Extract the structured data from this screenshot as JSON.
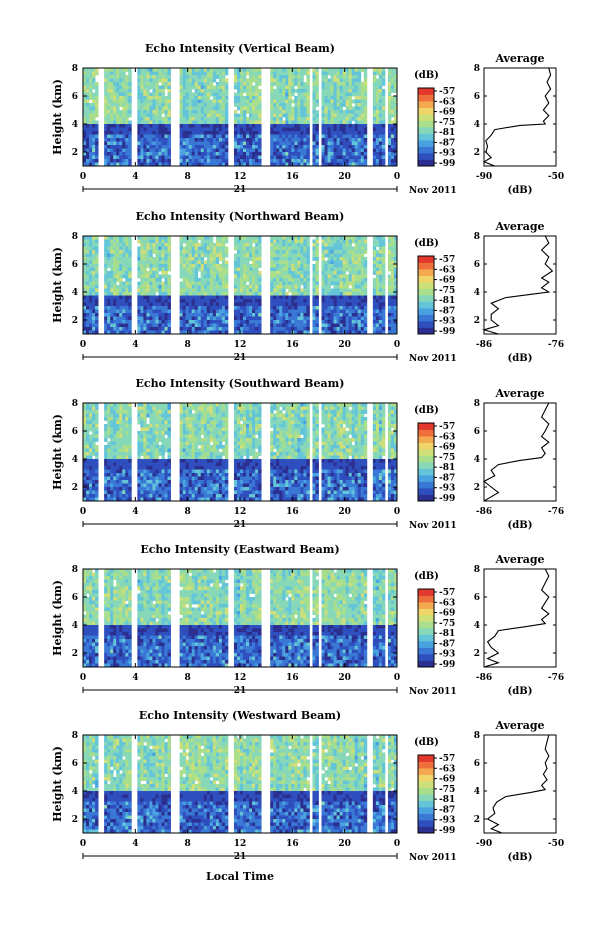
{
  "figure": {
    "xlabel": "Local Time",
    "date_day": "21",
    "date_suffix": "Nov 2011",
    "ylabel": "Height (km)",
    "cbar_unit": "(dB)",
    "cbar_ticks": [
      "-57",
      "-63",
      "-69",
      "-75",
      "-81",
      "-87",
      "-93",
      "-99"
    ],
    "colorscale": [
      "#2b2f8f",
      "#2f4fbf",
      "#3a78d6",
      "#4aa3e0",
      "#64c5d8",
      "#86d8b8",
      "#a9df8c",
      "#cfe07a",
      "#efd56a",
      "#f4a84f",
      "#ef6f3c",
      "#e2382e"
    ],
    "avg_title": "Average",
    "avg_xlabel": "(dB)",
    "time_ticks": [
      "0",
      "4",
      "8",
      "12",
      "16",
      "20",
      "0"
    ],
    "height_ticks": [
      "8",
      "6",
      "4",
      "2"
    ]
  },
  "chart_data": [
    {
      "type": "heatmap",
      "title": "Echo Intensity (Vertical Beam)",
      "xlabel": "Local Time",
      "ylabel": "Height (km)",
      "x_range_hours": [
        0,
        24
      ],
      "ylim_km": [
        1,
        8
      ],
      "clim_db": [
        -99,
        -57
      ],
      "boundary_height_km": 4.0,
      "avg_xlim": [
        -90,
        -50
      ],
      "avg_xticks": [
        "-90",
        "-50"
      ],
      "avg_profile": {
        "height_km": [
          1.0,
          1.3,
          1.6,
          2.0,
          2.4,
          2.8,
          3.2,
          3.6,
          3.9,
          4.0,
          4.2,
          4.6,
          5.0,
          5.5,
          6.0,
          6.5,
          7.0,
          7.5,
          8.0
        ],
        "value_db": [
          -84,
          -90,
          -86,
          -89,
          -88,
          -89,
          -86,
          -84,
          -70,
          -56,
          -57,
          -54,
          -57,
          -54,
          -56,
          -53,
          -55,
          -53,
          -54
        ]
      }
    },
    {
      "type": "heatmap",
      "title": "Echo Intensity (Northward Beam)",
      "xlabel": "Local Time",
      "ylabel": "Height (km)",
      "x_range_hours": [
        0,
        24
      ],
      "ylim_km": [
        1,
        8
      ],
      "clim_db": [
        -99,
        -57
      ],
      "boundary_height_km": 3.8,
      "avg_xlim": [
        -86,
        -76
      ],
      "avg_xticks": [
        "-86",
        "-76"
      ],
      "avg_profile": {
        "height_km": [
          1.0,
          1.3,
          1.6,
          2.0,
          2.4,
          2.8,
          3.2,
          3.6,
          3.8,
          4.0,
          4.3,
          4.7,
          5.0,
          5.5,
          6.0,
          6.5,
          7.0,
          7.5,
          8.0
        ],
        "value_db": [
          -84,
          -86,
          -84,
          -85,
          -85,
          -84,
          -85,
          -83,
          -80,
          -77,
          -78,
          -77,
          -78,
          -76.5,
          -77.5,
          -77,
          -78,
          -77,
          -77.5
        ]
      }
    },
    {
      "type": "heatmap",
      "title": "Echo Intensity (Southward Beam)",
      "xlabel": "Local Time",
      "ylabel": "Height (km)",
      "x_range_hours": [
        0,
        24
      ],
      "ylim_km": [
        1,
        8
      ],
      "clim_db": [
        -99,
        -57
      ],
      "boundary_height_km": 3.9,
      "avg_xlim": [
        -86,
        -76
      ],
      "avg_xticks": [
        "-86",
        "-76"
      ],
      "avg_profile": {
        "height_km": [
          1.0,
          1.3,
          1.6,
          2.0,
          2.4,
          2.8,
          3.2,
          3.6,
          3.9,
          4.1,
          4.4,
          4.8,
          5.2,
          5.6,
          6.0,
          6.5,
          7.0,
          7.5,
          8.0
        ],
        "value_db": [
          -86,
          -85,
          -84,
          -85,
          -86,
          -84.5,
          -85,
          -84,
          -81,
          -78,
          -77.5,
          -78,
          -77,
          -78,
          -77.5,
          -77,
          -78,
          -77.5,
          -77
        ]
      }
    },
    {
      "type": "heatmap",
      "title": "Echo Intensity (Eastward Beam)",
      "xlabel": "Local Time",
      "ylabel": "Height (km)",
      "x_range_hours": [
        0,
        24
      ],
      "ylim_km": [
        1,
        8
      ],
      "clim_db": [
        -99,
        -57
      ],
      "boundary_height_km": 3.9,
      "avg_xlim": [
        -86,
        -76
      ],
      "avg_xticks": [
        "-86",
        "-76"
      ],
      "avg_profile": {
        "height_km": [
          1.0,
          1.3,
          1.6,
          2.0,
          2.4,
          2.8,
          3.2,
          3.6,
          3.9,
          4.1,
          4.4,
          4.8,
          5.2,
          5.6,
          6.0,
          6.5,
          7.0,
          7.5,
          8.0
        ],
        "value_db": [
          -86,
          -84,
          -85.5,
          -84,
          -85,
          -85.5,
          -84.5,
          -84,
          -80,
          -77.5,
          -78,
          -77,
          -78,
          -77.5,
          -77,
          -78,
          -77.5,
          -77,
          -77.5
        ]
      }
    },
    {
      "type": "heatmap",
      "title": "Echo Intensity (Westward Beam)",
      "xlabel": "Local Time",
      "ylabel": "Height (km)",
      "x_range_hours": [
        0,
        24
      ],
      "ylim_km": [
        1,
        8
      ],
      "clim_db": [
        -99,
        -57
      ],
      "boundary_height_km": 3.9,
      "avg_xlim": [
        -90,
        -50
      ],
      "avg_xticks": [
        "-90",
        "-50"
      ],
      "avg_profile": {
        "height_km": [
          1.0,
          1.3,
          1.6,
          2.0,
          2.4,
          2.8,
          3.2,
          3.6,
          3.9,
          4.1,
          4.4,
          4.8,
          5.2,
          5.6,
          6.0,
          6.5,
          7.0,
          7.5,
          8.0
        ],
        "value_db": [
          -80,
          -86,
          -82,
          -88,
          -84,
          -85,
          -83,
          -78,
          -64,
          -56,
          -58,
          -55,
          -57,
          -55,
          -56,
          -54,
          -56,
          -55,
          -54
        ]
      }
    }
  ]
}
